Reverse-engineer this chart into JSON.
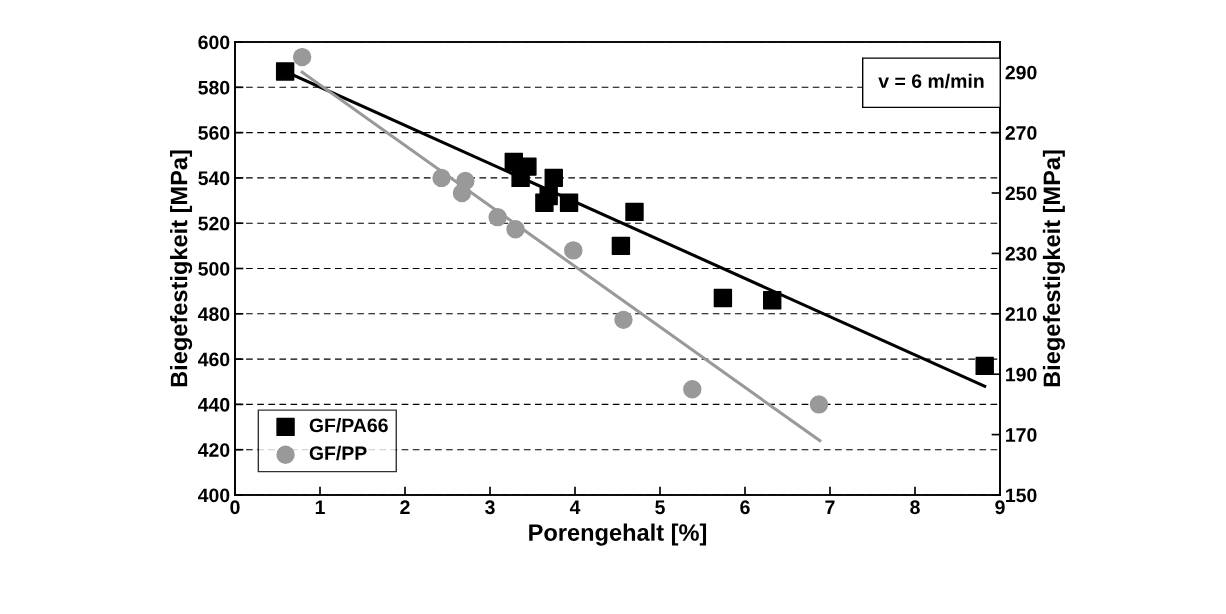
{
  "chart_data": {
    "type": "scatter",
    "xlabel": "Porengehalt [%]",
    "ylabel": "Biegefestigkeit [MPa]",
    "y2label": "Biegefestigkeit [MPa]",
    "xlim": [
      0,
      9
    ],
    "xticks": [
      0,
      1,
      2,
      3,
      4,
      5,
      6,
      7,
      8,
      9
    ],
    "ylim": [
      400,
      600
    ],
    "yticks": [
      400,
      420,
      440,
      460,
      480,
      500,
      520,
      540,
      560,
      580,
      600
    ],
    "y2lim": [
      150,
      300
    ],
    "y2ticks": [
      150,
      170,
      190,
      210,
      230,
      250,
      270,
      290
    ],
    "grid": "y",
    "legend": "bottom left",
    "annotations": [
      "v = 6 m/min"
    ],
    "series": [
      {
        "name": "GF/PA66",
        "color": "#000000",
        "marker": "square",
        "x": [
          0.59,
          3.28,
          3.44,
          3.36,
          3.75,
          3.69,
          3.64,
          3.93,
          4.54,
          4.7,
          5.74,
          6.32,
          8.82
        ],
        "values": [
          587,
          547,
          545,
          540,
          540,
          532,
          529,
          529,
          510,
          525,
          487,
          486,
          457
        ]
      },
      {
        "name": "GF/PP",
        "color": "#999999",
        "marker": "circle",
        "axis": "y2",
        "x": [
          0.79,
          2.43,
          2.71,
          2.67,
          3.09,
          3.3,
          3.98,
          4.57,
          5.38,
          6.87
        ],
        "values": [
          295,
          255,
          254,
          250,
          242,
          238,
          231,
          208,
          185,
          180
        ]
      },
      {
        "type": "line",
        "color": "#000000",
        "marker": "none",
        "x": [
          0.59,
          8.82
        ],
        "values": [
          587,
          448
        ]
      },
      {
        "type": "line",
        "color": "#999999",
        "marker": "none",
        "axis": "y2",
        "x": [
          0.79,
          6.88
        ],
        "values": [
          290,
          168
        ]
      }
    ]
  }
}
